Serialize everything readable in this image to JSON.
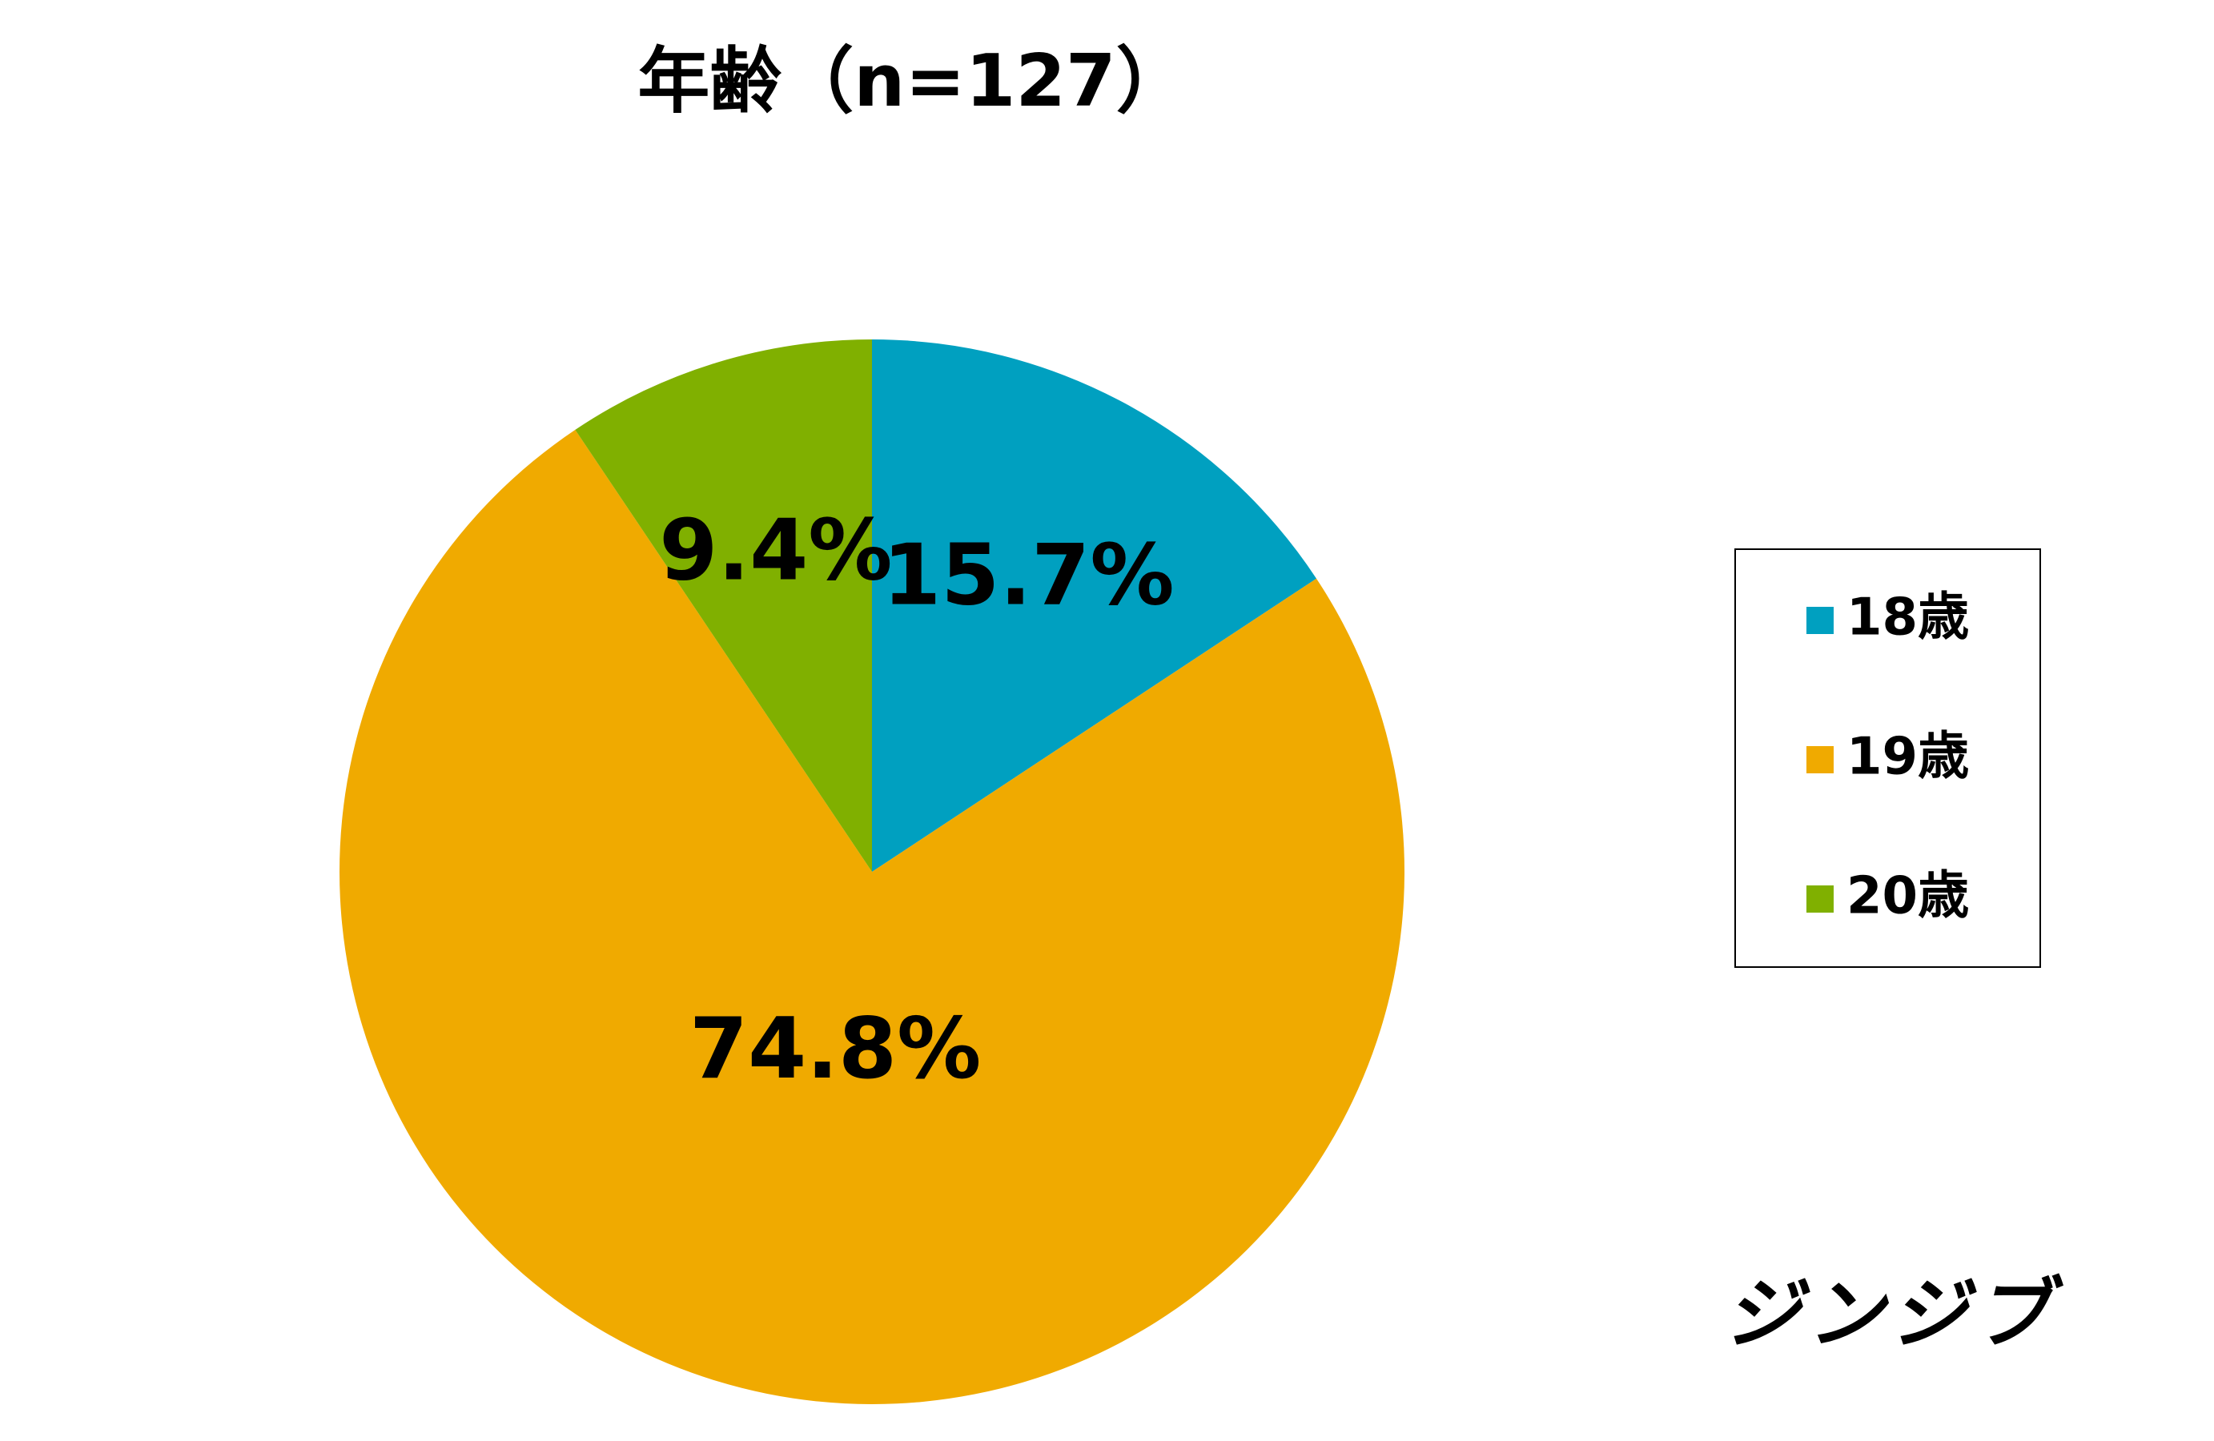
{
  "chart_data": {
    "type": "pie",
    "title": "年齢（n=127）",
    "categories": [
      "18歳",
      "19歳",
      "20歳"
    ],
    "values": [
      15.7,
      74.8,
      9.4
    ],
    "value_labels": [
      "15.7%",
      "74.8%",
      "9.4%"
    ],
    "colors": [
      "#00a0c0",
      "#f0aa00",
      "#80b000"
    ],
    "legend": "right"
  },
  "logo": "ジンジブ"
}
